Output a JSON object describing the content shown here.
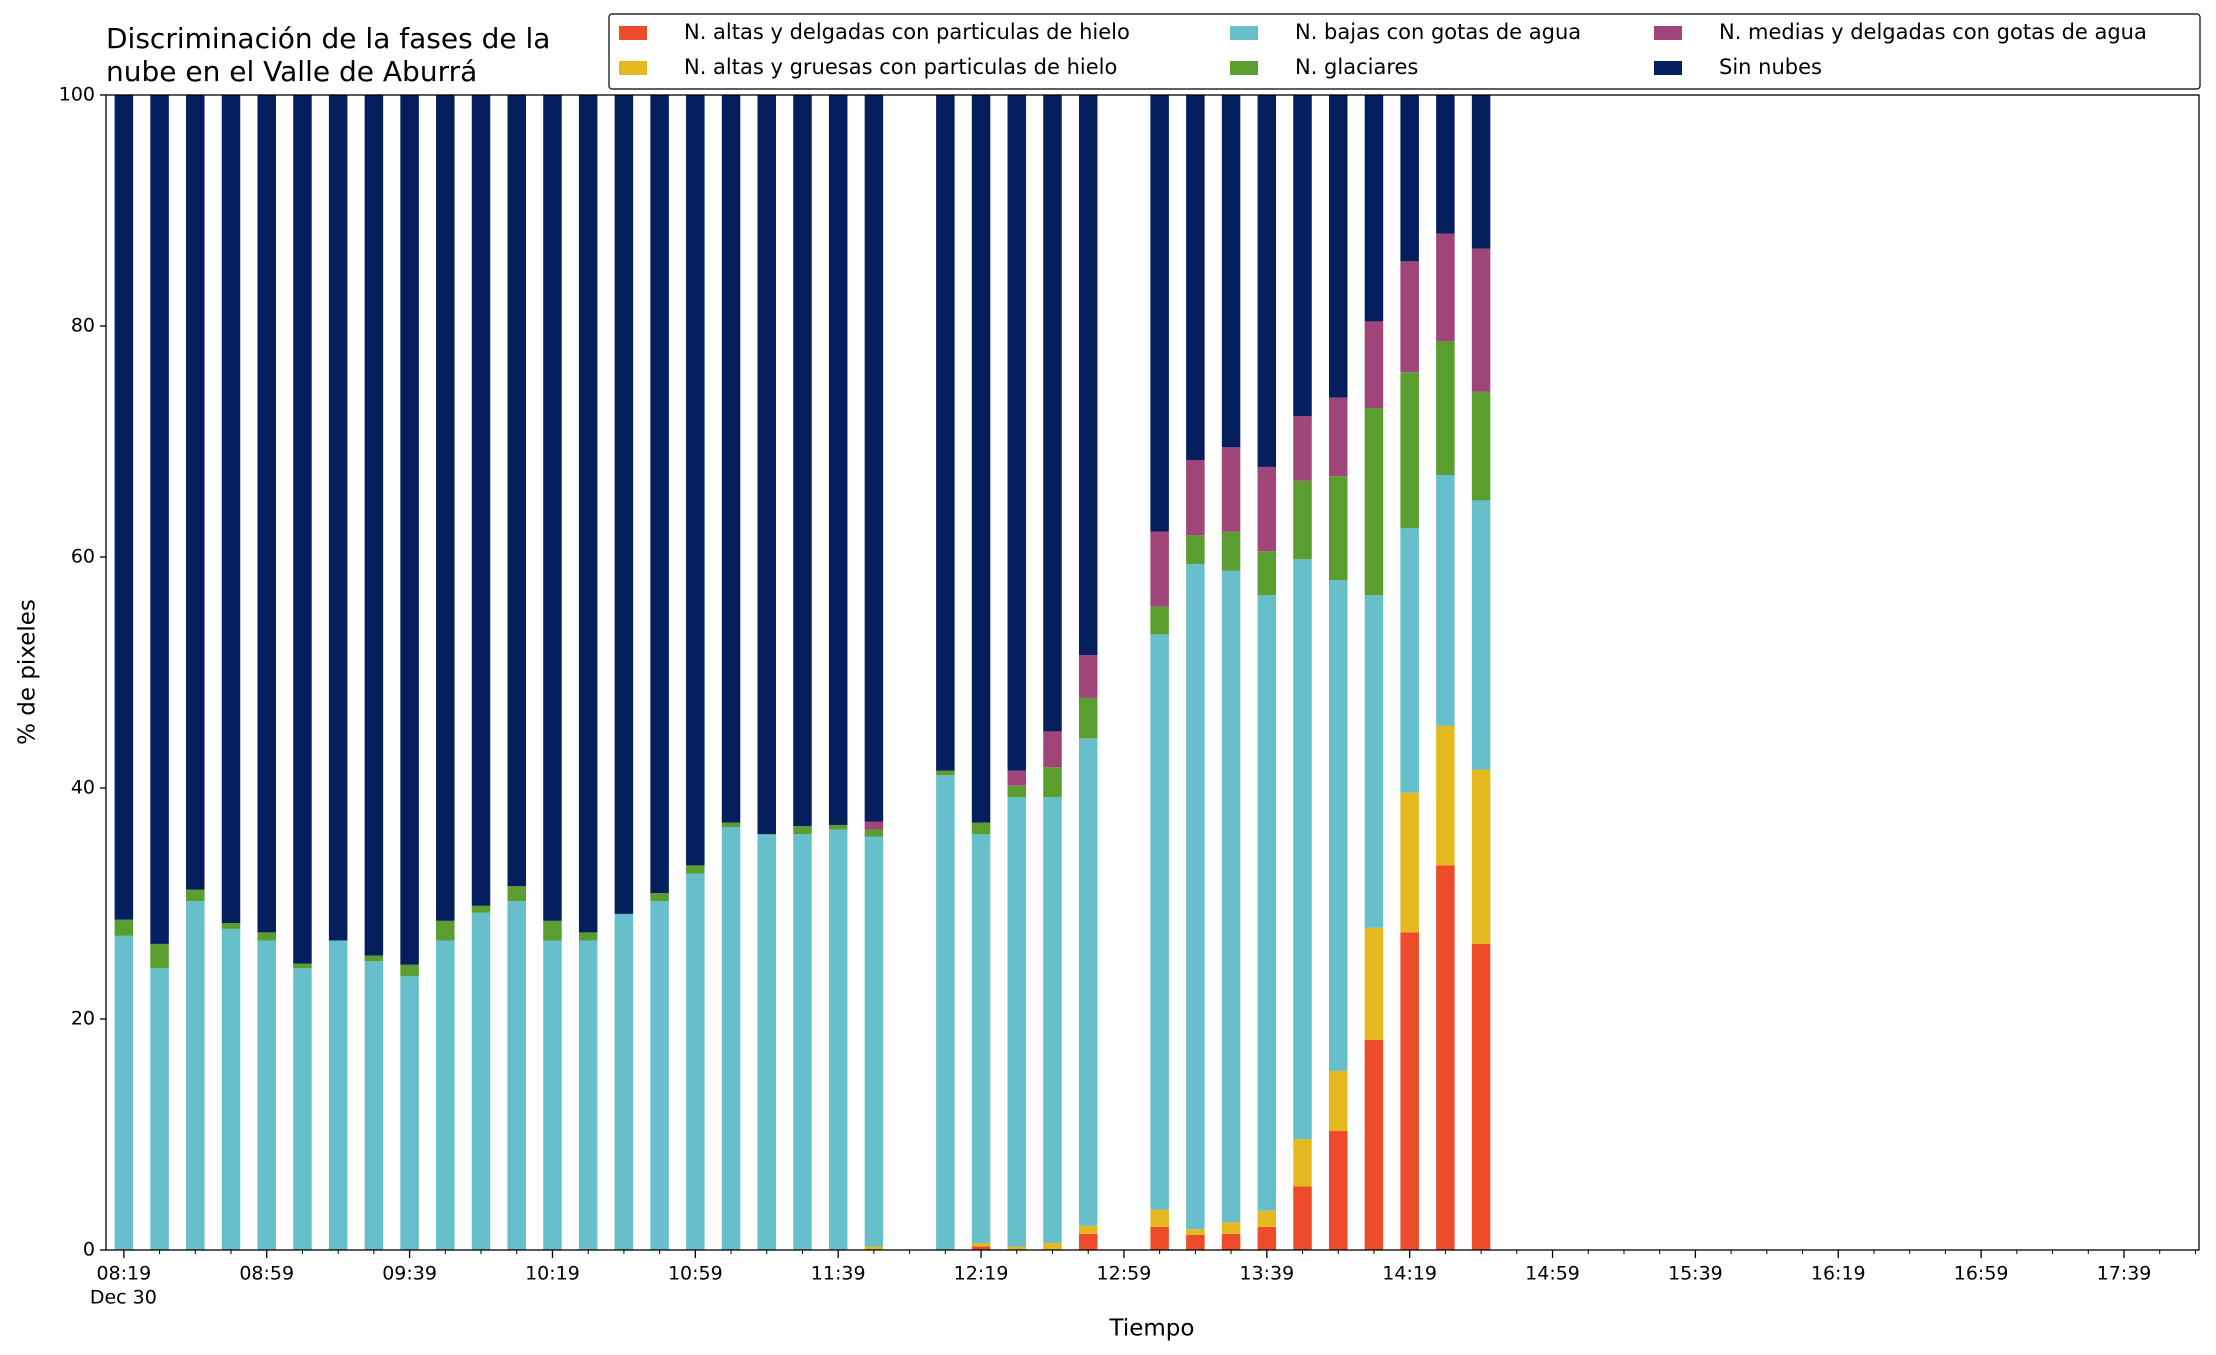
{
  "chart_data": {
    "type": "stacked_bar",
    "title": [
      "Discriminación de la fases de la",
      "nube en el Valle de Aburrá"
    ],
    "xlabel": "Tiempo",
    "ylabel": "% de pixeles",
    "x_date": "Dec 30",
    "x": [
      "08:19",
      "08:29",
      "08:39",
      "08:49",
      "08:59",
      "09:09",
      "09:19",
      "09:29",
      "09:39",
      "09:49",
      "09:59",
      "10:09",
      "10:19",
      "10:29",
      "10:39",
      "10:49",
      "10:59",
      "11:09",
      "11:19",
      "11:29",
      "11:39",
      "11:49",
      "12:09",
      "12:19",
      "12:29",
      "12:39",
      "12:49",
      "13:09",
      "13:19",
      "13:29",
      "13:39",
      "13:49",
      "13:59",
      "14:09",
      "14:19",
      "14:29",
      "14:39"
    ],
    "xlim": [
      "08:14",
      "18:00"
    ],
    "xticks": [
      "08:19",
      "08:59",
      "09:39",
      "10:19",
      "10:59",
      "11:39",
      "12:19",
      "12:59",
      "13:39",
      "14:19",
      "14:59",
      "15:39",
      "16:19",
      "16:59",
      "17:39"
    ],
    "ylim": [
      0,
      100
    ],
    "yticks": [
      0,
      20,
      40,
      60,
      80,
      100
    ],
    "legend": "upper right",
    "series": [
      {
        "name": "N. altas y delgadas con particulas de hielo",
        "color": "#ee4b2b",
        "values": [
          0,
          0,
          0,
          0,
          0,
          0,
          0,
          0,
          0,
          0,
          0,
          0,
          0,
          0,
          0,
          0,
          0,
          0,
          0,
          0,
          0,
          0,
          0,
          0.3,
          0,
          0,
          1.4,
          2.0,
          1.3,
          1.4,
          2.0,
          5.5,
          10.3,
          18.2,
          27.5,
          33.3,
          26.5
        ]
      },
      {
        "name": "N. altas y gruesas con particulas de hielo",
        "color": "#e6b81f",
        "values": [
          0,
          0,
          0,
          0,
          0,
          0,
          0,
          0,
          0,
          0,
          0,
          0,
          0,
          0,
          0,
          0,
          0,
          0,
          0,
          0,
          0,
          0.3,
          0,
          0.3,
          0.3,
          0.6,
          0.7,
          1.5,
          0.5,
          1.0,
          1.4,
          4.1,
          5.2,
          9.7,
          12.1,
          12.1,
          15.1
        ]
      },
      {
        "name": "N. bajas con gotas de agua",
        "color": "#67bfcb",
        "values": [
          27.2,
          24.4,
          30.2,
          27.8,
          26.8,
          24.4,
          26.8,
          25.0,
          23.7,
          26.8,
          29.2,
          30.2,
          26.8,
          26.8,
          29.1,
          30.2,
          32.6,
          36.6,
          36.0,
          36.0,
          36.4,
          35.5,
          41.1,
          35.4,
          38.9,
          38.6,
          42.2,
          49.8,
          57.6,
          56.4,
          53.3,
          50.2,
          42.5,
          28.8,
          22.9,
          21.7,
          23.3
        ]
      },
      {
        "name": "N. glaciares",
        "color": "#5a9e2f",
        "values": [
          1.4,
          2.1,
          1.0,
          0.5,
          0.7,
          0.4,
          0,
          0.5,
          1.0,
          1.7,
          0.6,
          1.3,
          1.7,
          0.7,
          0,
          0.7,
          0.7,
          0.4,
          0,
          0.7,
          0.4,
          0.6,
          0.4,
          1.0,
          1.0,
          2.6,
          3.5,
          2.4,
          2.5,
          3.4,
          3.8,
          6.8,
          9.0,
          16.2,
          13.5,
          11.6,
          9.4
        ]
      },
      {
        "name": "N. medias y delgadas con gotas de agua",
        "color": "#a0457a",
        "values": [
          0,
          0,
          0,
          0,
          0,
          0,
          0,
          0,
          0,
          0,
          0,
          0,
          0,
          0,
          0,
          0,
          0,
          0,
          0,
          0,
          0,
          0.7,
          0,
          0,
          1.3,
          3.1,
          3.7,
          6.5,
          6.5,
          7.3,
          7.3,
          5.6,
          6.8,
          7.5,
          9.6,
          9.3,
          12.4
        ]
      },
      {
        "name": "Sin nubes",
        "color": "#041e5e",
        "values": [
          71.4,
          73.5,
          68.8,
          71.7,
          72.5,
          75.2,
          73.2,
          74.5,
          75.3,
          71.5,
          70.2,
          68.5,
          71.5,
          72.5,
          70.9,
          69.1,
          66.7,
          63.0,
          64.0,
          63.3,
          63.2,
          62.9,
          58.5,
          63.0,
          58.5,
          55.1,
          48.5,
          37.8,
          31.6,
          30.5,
          32.2,
          27.8,
          26.2,
          19.6,
          14.4,
          12.0,
          13.3
        ]
      }
    ]
  }
}
